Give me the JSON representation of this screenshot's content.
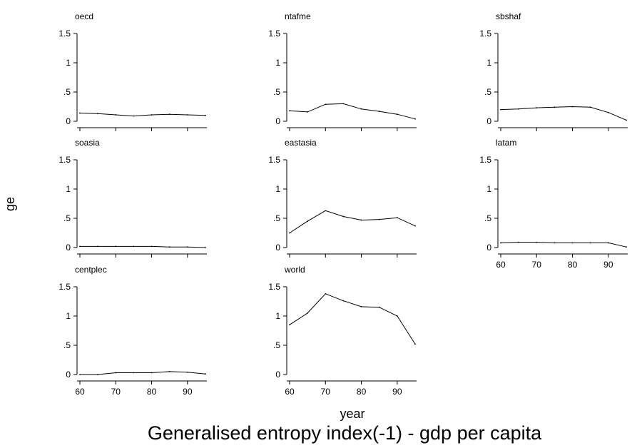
{
  "chart_data": {
    "type": "line",
    "title": "Generalised entropy index(-1) - gdp per capita",
    "xlabel": "year",
    "ylabel": "ge",
    "xlim": [
      60,
      95
    ],
    "ylim": [
      0,
      1.5
    ],
    "x_ticks": [
      "60",
      "70",
      "80",
      "90"
    ],
    "x_tick_values": [
      60,
      70,
      80,
      90
    ],
    "y_ticks": [
      "0",
      ".5",
      "1",
      "1.5"
    ],
    "y_tick_values": [
      0,
      0.5,
      1,
      1.5
    ],
    "panels": [
      {
        "name": "oecd",
        "x": [
          60,
          65,
          70,
          75,
          80,
          85,
          90,
          95
        ],
        "values": [
          0.14,
          0.13,
          0.11,
          0.09,
          0.11,
          0.12,
          0.11,
          0.1
        ]
      },
      {
        "name": "ntafme",
        "x": [
          60,
          65,
          70,
          75,
          80,
          85,
          90,
          95
        ],
        "values": [
          0.18,
          0.16,
          0.29,
          0.3,
          0.21,
          0.17,
          0.12,
          0.04
        ]
      },
      {
        "name": "sbshaf",
        "x": [
          60,
          65,
          70,
          75,
          80,
          85,
          90,
          95
        ],
        "values": [
          0.2,
          0.21,
          0.23,
          0.24,
          0.25,
          0.24,
          0.15,
          0.02
        ]
      },
      {
        "name": "soasia",
        "x": [
          60,
          65,
          70,
          75,
          80,
          85,
          90,
          95
        ],
        "values": [
          0.02,
          0.02,
          0.02,
          0.02,
          0.02,
          0.01,
          0.01,
          0.0
        ]
      },
      {
        "name": "eastasia",
        "x": [
          60,
          65,
          70,
          75,
          80,
          85,
          90,
          95
        ],
        "values": [
          0.25,
          0.45,
          0.63,
          0.53,
          0.47,
          0.48,
          0.51,
          0.37
        ]
      },
      {
        "name": "latam",
        "x": [
          60,
          65,
          70,
          75,
          80,
          85,
          90,
          95
        ],
        "values": [
          0.08,
          0.09,
          0.09,
          0.08,
          0.08,
          0.08,
          0.08,
          0.01
        ]
      },
      {
        "name": "centplec",
        "x": [
          60,
          65,
          70,
          75,
          80,
          85,
          90,
          95
        ],
        "values": [
          0.0,
          0.0,
          0.03,
          0.03,
          0.03,
          0.05,
          0.04,
          0.01
        ]
      },
      {
        "name": "world",
        "x": [
          60,
          65,
          70,
          75,
          80,
          85,
          90,
          95
        ],
        "values": [
          0.85,
          1.05,
          1.38,
          1.26,
          1.16,
          1.15,
          1.0,
          0.52
        ]
      }
    ]
  }
}
